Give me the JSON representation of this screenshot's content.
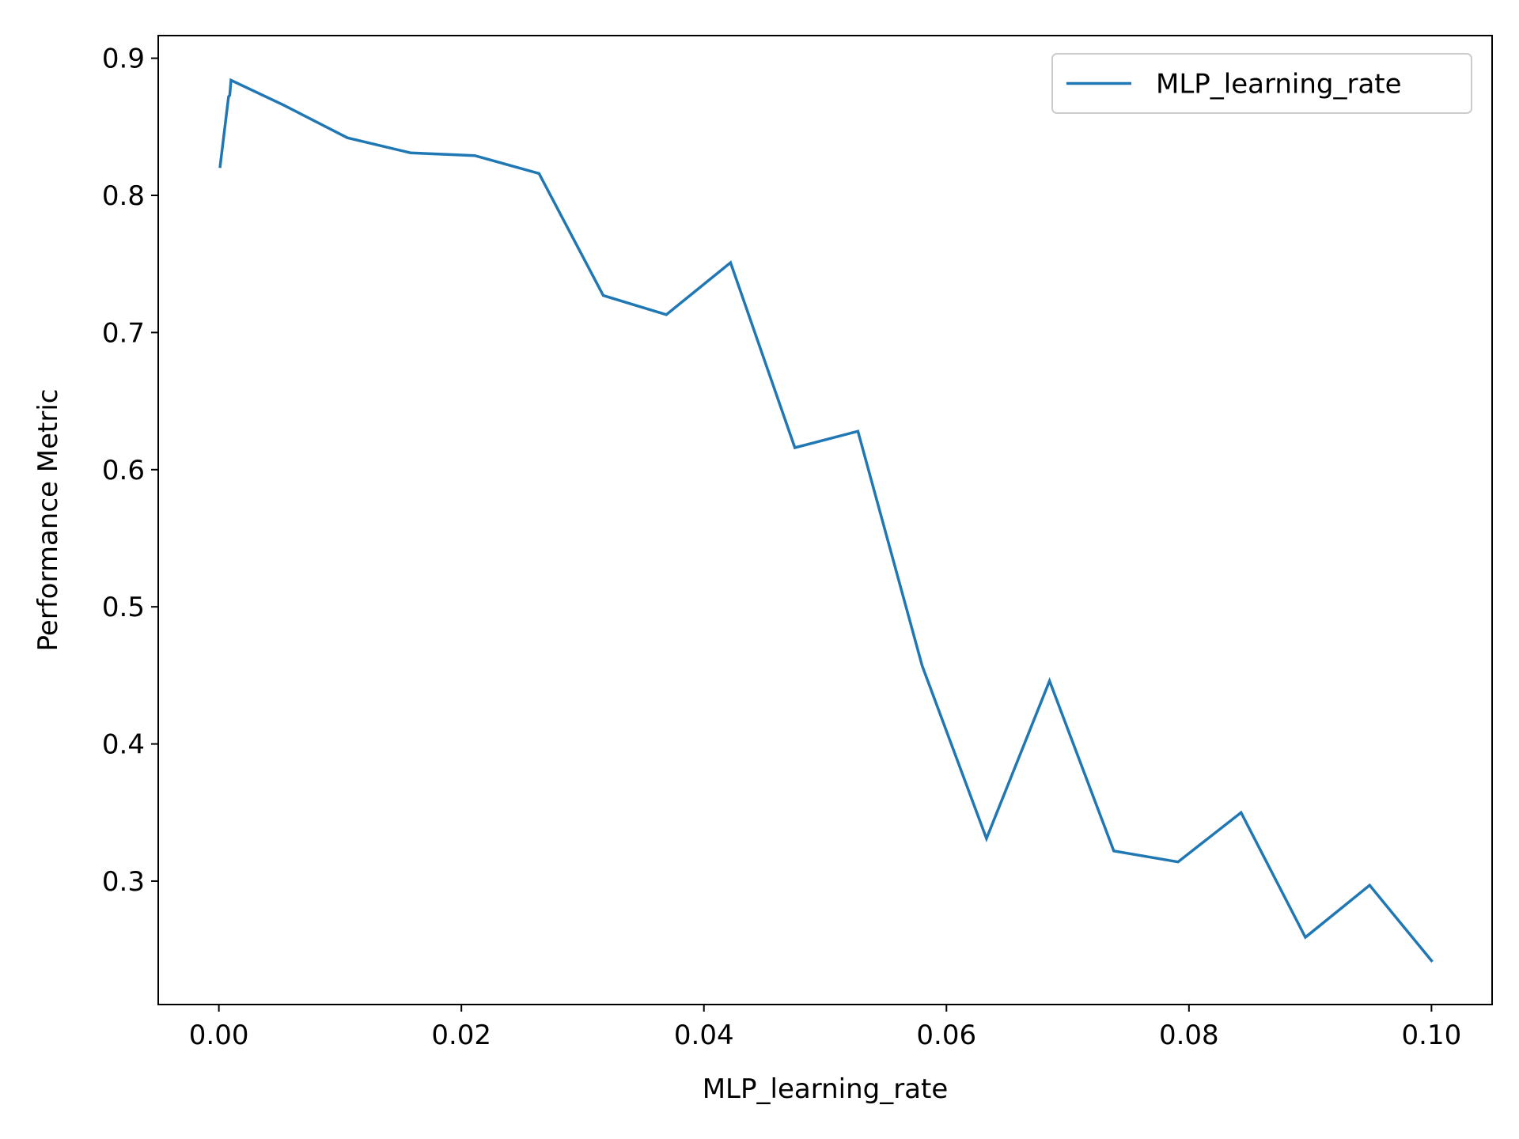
{
  "chart_data": {
    "type": "line",
    "xlabel": "MLP_learning_rate",
    "ylabel": "Performance Metric",
    "xlim": [
      -0.005,
      0.105
    ],
    "ylim": [
      0.21,
      0.9165
    ],
    "xticks": [
      0.0,
      0.02,
      0.04,
      0.06,
      0.08,
      0.1
    ],
    "xtick_labels": [
      "0.00",
      "0.02",
      "0.04",
      "0.06",
      "0.08",
      "0.10"
    ],
    "yticks": [
      0.3,
      0.4,
      0.5,
      0.6,
      0.7,
      0.8,
      0.9
    ],
    "ytick_labels": [
      "0.3",
      "0.4",
      "0.5",
      "0.6",
      "0.7",
      "0.8",
      "0.9"
    ],
    "grid": false,
    "legend_position": "top-right",
    "series": [
      {
        "name": "MLP_learning_rate",
        "color": "#1f77b4",
        "x": [
          0.0001,
          0.0008,
          0.0009,
          0.001,
          0.0053,
          0.0106,
          0.0158,
          0.0211,
          0.0264,
          0.0317,
          0.0369,
          0.0422,
          0.0475,
          0.0527,
          0.058,
          0.0633,
          0.0685,
          0.0738,
          0.0791,
          0.0843,
          0.0896,
          0.0949,
          0.1
        ],
        "y": [
          0.821,
          0.872,
          0.873,
          0.884,
          0.866,
          0.842,
          0.831,
          0.829,
          0.816,
          0.727,
          0.713,
          0.751,
          0.616,
          0.628,
          0.457,
          0.331,
          0.446,
          0.322,
          0.314,
          0.35,
          0.259,
          0.297,
          0.242
        ]
      }
    ]
  }
}
